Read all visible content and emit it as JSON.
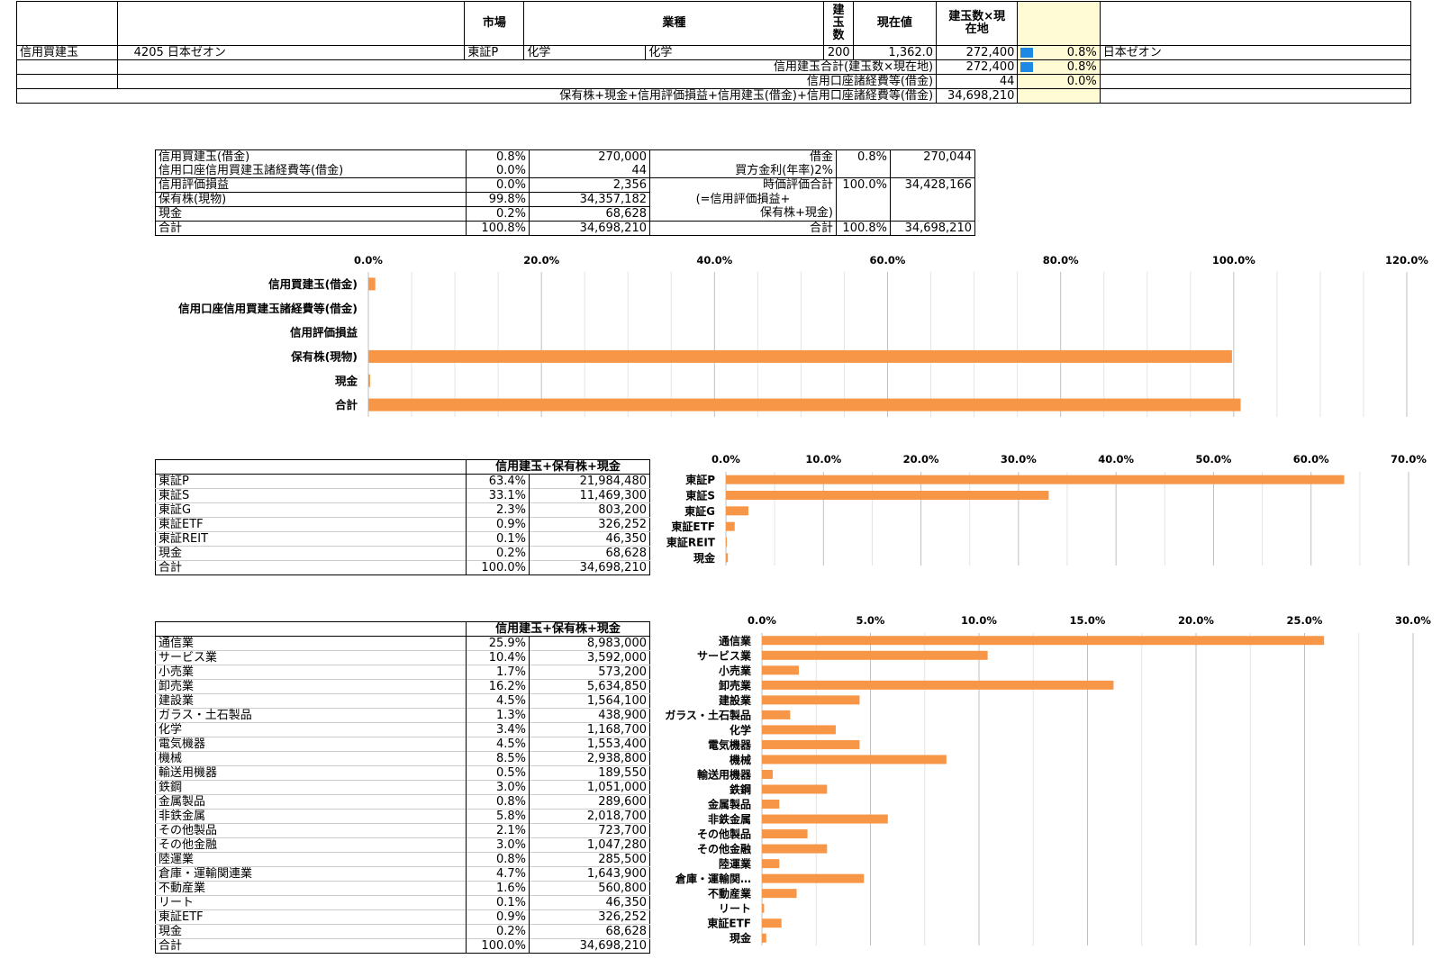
{
  "top": {
    "header": {
      "market": "市場",
      "industry": "業種",
      "qty": "建玉数",
      "price": "現在値",
      "qtyxprice": "建玉数×現在地"
    },
    "row": {
      "type": "信用買建玉",
      "code": "4205 日本ゼオン",
      "market": "東証P",
      "ind1": "化学",
      "ind2": "化学",
      "qty": "200",
      "price": "1,362.0",
      "value": "272,400",
      "pct": "0.8%",
      "name": "日本ゼオン"
    },
    "sum1": {
      "label": "信用建玉合計(建玉数×現在地)",
      "value": "272,400",
      "pct": "0.8%"
    },
    "sum2": {
      "label": "信用口座諸経費等(借金)",
      "value": "44",
      "pct": "0.0%"
    },
    "sum3": {
      "label": "保有株+現金+信用評価損益+信用建玉(借金)+信用口座諸経費等(借金)",
      "value": "34,698,210"
    }
  },
  "summary": {
    "left": [
      {
        "label": "信用買建玉(借金)",
        "pct": "0.8%",
        "value": "270,000"
      },
      {
        "label": "信用口座信用買建玉諸経費等(借金)",
        "pct": "0.0%",
        "value": "44"
      },
      {
        "label": "信用評価損益",
        "pct": "0.0%",
        "value": "2,356"
      },
      {
        "label": "保有株(現物)",
        "pct": "99.8%",
        "value": "34,357,182"
      },
      {
        "label": "現金",
        "pct": "0.2%",
        "value": "68,628"
      },
      {
        "label": "合計",
        "pct": "100.8%",
        "value": "34,698,210"
      }
    ],
    "right": {
      "debt_label": "借金",
      "debt_pct": "0.8%",
      "debt_value": "270,044",
      "rate_label": "買方金利(年率)2%",
      "eval_label1": "時価評価合計",
      "eval_label2": "(=信用評価損益+",
      "eval_label3": "保有株+現金)",
      "eval_pct": "100.0%",
      "eval_value": "34,428,166",
      "total_label": "合計",
      "total_pct": "100.8%",
      "total_value": "34,698,210"
    }
  },
  "market_table": {
    "header": "信用建玉+保有株+現金",
    "rows": [
      {
        "label": "東証P",
        "pct": "63.4%",
        "value": "21,984,480"
      },
      {
        "label": "東証S",
        "pct": "33.1%",
        "value": "11,469,300"
      },
      {
        "label": "東証G",
        "pct": "2.3%",
        "value": "803,200"
      },
      {
        "label": "東証ETF",
        "pct": "0.9%",
        "value": "326,252"
      },
      {
        "label": "東証REIT",
        "pct": "0.1%",
        "value": "46,350"
      },
      {
        "label": "現金",
        "pct": "0.2%",
        "value": "68,628"
      },
      {
        "label": "合計",
        "pct": "100.0%",
        "value": "34,698,210"
      }
    ]
  },
  "industry_table": {
    "header": "信用建玉+保有株+現金",
    "rows": [
      {
        "label": "通信業",
        "pct": "25.9%",
        "value": "8,983,000"
      },
      {
        "label": "サービス業",
        "pct": "10.4%",
        "value": "3,592,000"
      },
      {
        "label": "小売業",
        "pct": "1.7%",
        "value": "573,200"
      },
      {
        "label": "卸売業",
        "pct": "16.2%",
        "value": "5,634,850"
      },
      {
        "label": "建設業",
        "pct": "4.5%",
        "value": "1,564,100"
      },
      {
        "label": "ガラス・土石製品",
        "pct": "1.3%",
        "value": "438,900"
      },
      {
        "label": "化学",
        "pct": "3.4%",
        "value": "1,168,700"
      },
      {
        "label": "電気機器",
        "pct": "4.5%",
        "value": "1,553,400"
      },
      {
        "label": "機械",
        "pct": "8.5%",
        "value": "2,938,800"
      },
      {
        "label": "輸送用機器",
        "pct": "0.5%",
        "value": "189,550"
      },
      {
        "label": "鉄鋼",
        "pct": "3.0%",
        "value": "1,051,000"
      },
      {
        "label": "金属製品",
        "pct": "0.8%",
        "value": "289,600"
      },
      {
        "label": "非鉄金属",
        "pct": "5.8%",
        "value": "2,018,700"
      },
      {
        "label": "その他製品",
        "pct": "2.1%",
        "value": "723,700"
      },
      {
        "label": "その他金融",
        "pct": "3.0%",
        "value": "1,047,280"
      },
      {
        "label": "陸運業",
        "pct": "0.8%",
        "value": "285,500"
      },
      {
        "label": "倉庫・運輸関連業",
        "pct": "4.7%",
        "value": "1,643,900"
      },
      {
        "label": "不動産業",
        "pct": "1.6%",
        "value": "560,800"
      },
      {
        "label": "リート",
        "pct": "0.1%",
        "value": "46,350"
      },
      {
        "label": "東証ETF",
        "pct": "0.9%",
        "value": "326,252"
      },
      {
        "label": "現金",
        "pct": "0.2%",
        "value": "68,628"
      },
      {
        "label": "合計",
        "pct": "100.0%",
        "value": "34,698,210"
      }
    ]
  },
  "chart_data": [
    {
      "type": "bar",
      "orientation": "horizontal",
      "bar_color": "#f79646",
      "categories": [
        "信用買建玉(借金)",
        "信用口座信用買建玉諸経費等(借金)",
        "信用評価損益",
        "保有株(現物)",
        "現金",
        "合計"
      ],
      "values": [
        0.8,
        0.0,
        0.0,
        99.8,
        0.2,
        100.8
      ],
      "xlim": [
        0,
        120
      ],
      "ticks": [
        "0.0%",
        "20.0%",
        "40.0%",
        "60.0%",
        "80.0%",
        "100.0%",
        "120.0%"
      ],
      "grid": true
    },
    {
      "type": "bar",
      "orientation": "horizontal",
      "bar_color": "#f79646",
      "categories": [
        "東証P",
        "東証S",
        "東証G",
        "東証ETF",
        "東証REIT",
        "現金"
      ],
      "values": [
        63.4,
        33.1,
        2.3,
        0.9,
        0.1,
        0.2
      ],
      "xlim": [
        0,
        70
      ],
      "ticks": [
        "0.0%",
        "10.0%",
        "20.0%",
        "30.0%",
        "40.0%",
        "50.0%",
        "60.0%",
        "70.0%"
      ],
      "grid": true
    },
    {
      "type": "bar",
      "orientation": "horizontal",
      "bar_color": "#f79646",
      "categories": [
        "通信業",
        "サービス業",
        "小売業",
        "卸売業",
        "建設業",
        "ガラス・土石製品",
        "化学",
        "電気機器",
        "機械",
        "輸送用機器",
        "鉄鋼",
        "金属製品",
        "非鉄金属",
        "その他製品",
        "その他金融",
        "陸運業",
        "倉庫・運輸関…",
        "不動産業",
        "リート",
        "東証ETF",
        "現金"
      ],
      "values": [
        25.9,
        10.4,
        1.7,
        16.2,
        4.5,
        1.3,
        3.4,
        4.5,
        8.5,
        0.5,
        3.0,
        0.8,
        5.8,
        2.1,
        3.0,
        0.8,
        4.7,
        1.6,
        0.1,
        0.9,
        0.2
      ],
      "xlim": [
        0,
        30
      ],
      "ticks": [
        "0.0%",
        "5.0%",
        "10.0%",
        "15.0%",
        "20.0%",
        "25.0%",
        "30.0%"
      ],
      "grid": true
    }
  ]
}
